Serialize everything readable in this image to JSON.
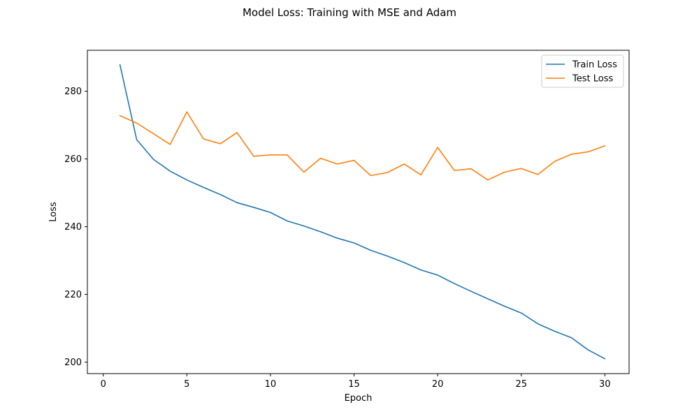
{
  "chart_data": {
    "type": "line",
    "title": "Model Loss: Training with MSE and Adam",
    "xlabel": "Epoch",
    "ylabel": "Loss",
    "xlim": [
      -0.95,
      31.45
    ],
    "ylim": [
      196.6,
      292.1
    ],
    "xticks": [
      0,
      5,
      10,
      15,
      20,
      25,
      30
    ],
    "yticks": [
      200,
      220,
      240,
      260,
      280
    ],
    "grid": false,
    "legend_position": "top-right",
    "x": [
      1,
      2,
      3,
      4,
      5,
      6,
      7,
      8,
      9,
      10,
      11,
      12,
      13,
      14,
      15,
      16,
      17,
      18,
      19,
      20,
      21,
      22,
      23,
      24,
      25,
      26,
      27,
      28,
      29,
      30
    ],
    "series": [
      {
        "name": "Train Loss",
        "color": "#1f77b4",
        "values": [
          287.8,
          265.7,
          259.9,
          256.4,
          253.8,
          251.6,
          249.5,
          247.1,
          245.7,
          244.2,
          241.7,
          240.2,
          238.5,
          236.6,
          235.2,
          233.0,
          231.3,
          229.4,
          227.2,
          225.7,
          223.2,
          220.9,
          218.7,
          216.5,
          214.5,
          211.3,
          209.1,
          207.2,
          203.6,
          201.0
        ]
      },
      {
        "name": "Test Loss",
        "color": "#ff7f0e",
        "values": [
          272.8,
          270.6,
          267.5,
          264.3,
          273.9,
          265.9,
          264.5,
          267.8,
          260.8,
          261.2,
          261.2,
          256.1,
          260.2,
          258.5,
          259.6,
          255.1,
          256.0,
          258.5,
          255.3,
          263.4,
          256.6,
          257.1,
          253.8,
          256.1,
          257.2,
          255.4,
          259.3,
          261.4,
          262.1,
          263.9
        ]
      }
    ]
  }
}
